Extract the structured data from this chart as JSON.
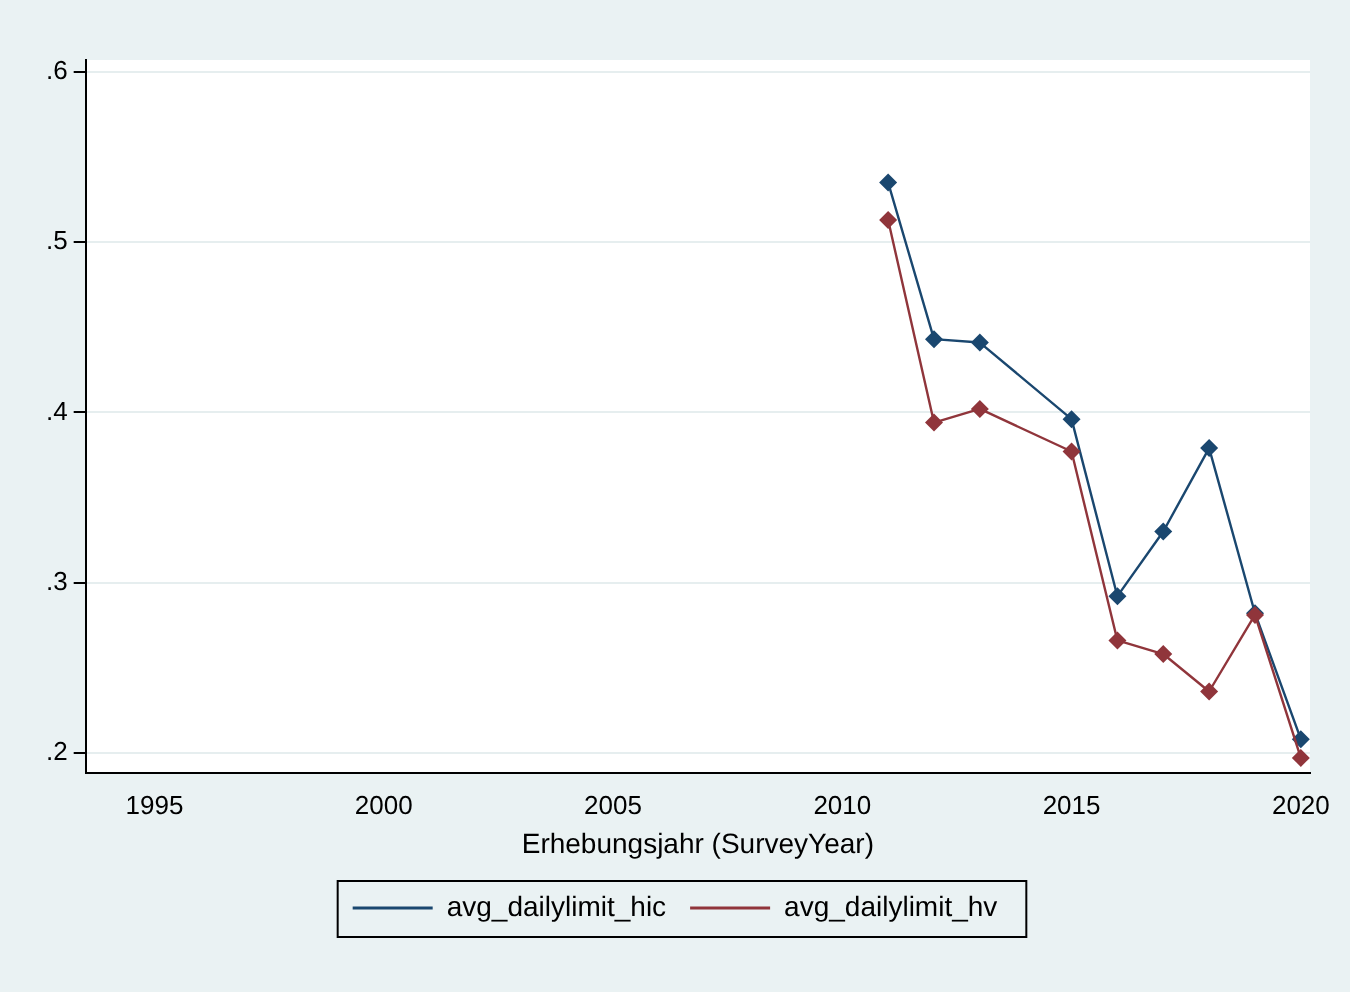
{
  "chart_data": {
    "type": "line",
    "xlabel": "Erhebungsjahr (SurveyYear)",
    "x": [
      2011,
      2012,
      2013,
      2015,
      2016,
      2017,
      2018,
      2019,
      2020
    ],
    "series": [
      {
        "name": "avg_dailylimit_hic",
        "color": "#1a476f",
        "values": [
          0.535,
          0.443,
          0.441,
          0.396,
          0.292,
          0.33,
          0.379,
          0.282,
          0.208
        ]
      },
      {
        "name": "avg_dailylimit_hv",
        "color": "#90353b",
        "values": [
          0.513,
          0.394,
          0.402,
          0.377,
          0.266,
          0.258,
          0.236,
          0.281,
          0.197
        ]
      }
    ],
    "xlim": [
      1993.5,
      2020.2
    ],
    "xticks": [
      1995,
      2000,
      2005,
      2010,
      2015,
      2020
    ],
    "ylim": [
      0.188,
      0.607
    ],
    "yticks": [
      {
        "value": 0.2,
        "label": ".2"
      },
      {
        "value": 0.3,
        "label": ".3"
      },
      {
        "value": 0.4,
        "label": ".4"
      },
      {
        "value": 0.5,
        "label": ".5"
      },
      {
        "value": 0.6,
        "label": ".6"
      }
    ],
    "grid": "y",
    "legend": "bottom",
    "marker": "diamond",
    "line_style": "solid"
  }
}
